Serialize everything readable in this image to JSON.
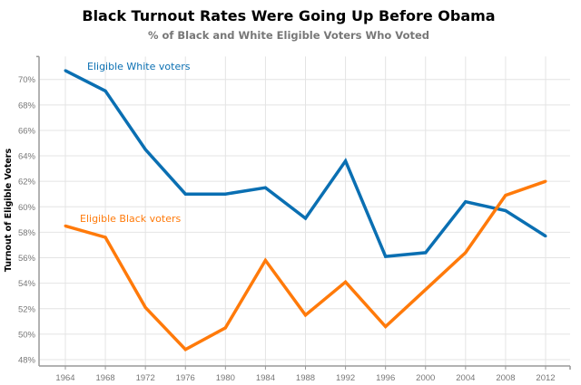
{
  "chart_data": {
    "type": "line",
    "title": "Black Turnout Rates Were Going Up Before Obama",
    "subtitle": "% of Black and White Eligible Voters Who Voted",
    "xlabel": "",
    "ylabel": "Turnout of Eligible Voters",
    "x": [
      1964,
      1968,
      1972,
      1976,
      1980,
      1984,
      1988,
      1992,
      1996,
      2000,
      2004,
      2008,
      2012
    ],
    "x_ticks": [
      "1964",
      "1968",
      "1972",
      "1976",
      "1980",
      "1984",
      "1988",
      "1992",
      "1996",
      "2000",
      "2004",
      "2008",
      "2012"
    ],
    "y_ticks": [
      "48%",
      "50%",
      "52%",
      "54%",
      "56%",
      "58%",
      "60%",
      "62%",
      "64%",
      "66%",
      "68%",
      "70%"
    ],
    "ylim": [
      47.5,
      71.8
    ],
    "grid": true,
    "legend": "inline labels",
    "series": [
      {
        "name": "Eligible White voters",
        "color": "#0a6fb2",
        "values": [
          70.7,
          69.1,
          64.5,
          61.0,
          61.0,
          61.5,
          59.1,
          63.6,
          56.1,
          56.4,
          60.4,
          59.7,
          57.7
        ]
      },
      {
        "name": "Eligible Black voters",
        "color": "#ff7a0a",
        "values": [
          58.5,
          57.6,
          52.1,
          48.8,
          50.5,
          55.8,
          51.5,
          54.1,
          50.6,
          53.5,
          56.4,
          60.9,
          62.0
        ]
      }
    ]
  }
}
